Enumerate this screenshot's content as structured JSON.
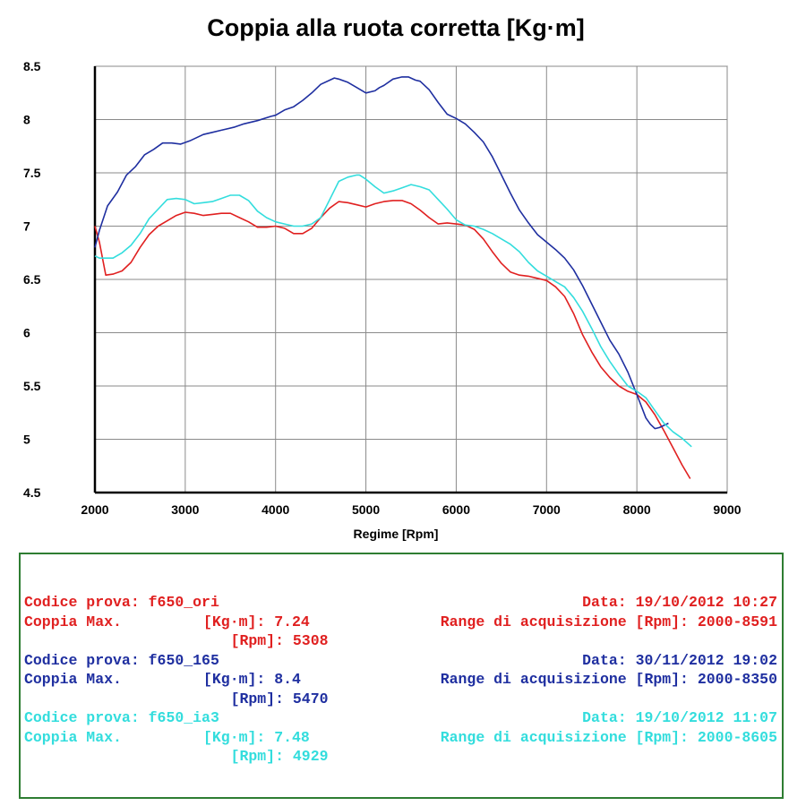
{
  "chart_data": {
    "type": "line",
    "title": "Coppia alla ruota corretta [Kg·m]",
    "xlabel": "Regime [Rpm]",
    "ylabel": "",
    "xlim": [
      2000,
      9000
    ],
    "ylim": [
      4.5,
      8.5
    ],
    "xticks": [
      "2000",
      "3000",
      "4000",
      "5000",
      "6000",
      "7000",
      "8000",
      "9000"
    ],
    "yticks": [
      "4.5",
      "5",
      "5.5",
      "6",
      "6.5",
      "7",
      "7.5",
      "8",
      "8.5"
    ],
    "grid": true,
    "series": [
      {
        "name": "f650_ori",
        "color": "#e02020",
        "x": [
          2000,
          2050,
          2120,
          2200,
          2300,
          2400,
          2500,
          2600,
          2700,
          2800,
          2900,
          3000,
          3100,
          3200,
          3300,
          3400,
          3500,
          3600,
          3700,
          3800,
          3900,
          4000,
          4100,
          4200,
          4300,
          4400,
          4500,
          4600,
          4700,
          4800,
          4900,
          5000,
          5100,
          5200,
          5300,
          5400,
          5500,
          5600,
          5700,
          5800,
          5900,
          6000,
          6100,
          6200,
          6300,
          6400,
          6500,
          6600,
          6700,
          6800,
          6900,
          7000,
          7100,
          7200,
          7300,
          7400,
          7500,
          7600,
          7700,
          7800,
          7900,
          8000,
          8100,
          8200,
          8300,
          8400,
          8500,
          8591
        ],
        "values": [
          7.0,
          6.85,
          6.54,
          6.55,
          6.58,
          6.66,
          6.8,
          6.92,
          7.0,
          7.05,
          7.1,
          7.13,
          7.12,
          7.1,
          7.11,
          7.12,
          7.12,
          7.08,
          7.04,
          6.99,
          6.99,
          7.0,
          6.98,
          6.93,
          6.93,
          6.98,
          7.08,
          7.17,
          7.23,
          7.22,
          7.2,
          7.18,
          7.21,
          7.23,
          7.24,
          7.24,
          7.21,
          7.15,
          7.08,
          7.02,
          7.03,
          7.02,
          7.01,
          6.97,
          6.88,
          6.76,
          6.65,
          6.57,
          6.54,
          6.53,
          6.51,
          6.49,
          6.43,
          6.34,
          6.18,
          5.98,
          5.82,
          5.68,
          5.58,
          5.5,
          5.45,
          5.42,
          5.35,
          5.23,
          5.08,
          4.92,
          4.76,
          4.63
        ]
      },
      {
        "name": "f650_165",
        "color": "#1f2fa0",
        "x": [
          2000,
          2050,
          2140,
          2250,
          2350,
          2450,
          2550,
          2650,
          2750,
          2850,
          2950,
          3050,
          3200,
          3300,
          3400,
          3550,
          3650,
          3800,
          3950,
          4000,
          4100,
          4200,
          4300,
          4400,
          4500,
          4600,
          4650,
          4700,
          4800,
          4900,
          5000,
          5100,
          5150,
          5200,
          5300,
          5400,
          5470,
          5550,
          5600,
          5700,
          5800,
          5900,
          6000,
          6100,
          6200,
          6300,
          6400,
          6500,
          6600,
          6700,
          6800,
          6900,
          7000,
          7100,
          7200,
          7300,
          7400,
          7500,
          7600,
          7700,
          7800,
          7900,
          8000,
          8100,
          8150,
          8200,
          8250,
          8300,
          8350
        ],
        "values": [
          6.8,
          6.96,
          7.19,
          7.32,
          7.48,
          7.56,
          7.67,
          7.72,
          7.78,
          7.78,
          7.77,
          7.8,
          7.86,
          7.88,
          7.9,
          7.93,
          7.96,
          7.99,
          8.03,
          8.04,
          8.09,
          8.12,
          8.18,
          8.25,
          8.33,
          8.37,
          8.39,
          8.38,
          8.35,
          8.3,
          8.25,
          8.27,
          8.3,
          8.32,
          8.38,
          8.4,
          8.4,
          8.37,
          8.36,
          8.28,
          8.16,
          8.05,
          8.01,
          7.96,
          7.88,
          7.79,
          7.65,
          7.48,
          7.31,
          7.15,
          7.03,
          6.92,
          6.85,
          6.78,
          6.7,
          6.59,
          6.44,
          6.27,
          6.1,
          5.93,
          5.8,
          5.63,
          5.42,
          5.2,
          5.14,
          5.1,
          5.11,
          5.13,
          5.15
        ]
      },
      {
        "name": "f650_ia3",
        "color": "#33dddd",
        "x": [
          2000,
          2050,
          2100,
          2200,
          2300,
          2400,
          2500,
          2600,
          2700,
          2800,
          2900,
          3000,
          3100,
          3200,
          3300,
          3400,
          3500,
          3600,
          3700,
          3800,
          3900,
          4000,
          4100,
          4200,
          4300,
          4400,
          4500,
          4600,
          4700,
          4800,
          4900,
          4929,
          5000,
          5100,
          5200,
          5300,
          5400,
          5500,
          5600,
          5700,
          5800,
          5900,
          6000,
          6100,
          6200,
          6300,
          6400,
          6500,
          6600,
          6700,
          6800,
          6900,
          7000,
          7100,
          7200,
          7300,
          7400,
          7500,
          7600,
          7700,
          7800,
          7900,
          8000,
          8100,
          8200,
          8300,
          8400,
          8500,
          8605
        ],
        "values": [
          6.72,
          6.7,
          6.7,
          6.7,
          6.75,
          6.82,
          6.93,
          7.07,
          7.16,
          7.25,
          7.26,
          7.25,
          7.21,
          7.22,
          7.23,
          7.26,
          7.29,
          7.29,
          7.24,
          7.14,
          7.08,
          7.04,
          7.02,
          7.0,
          7.0,
          7.02,
          7.08,
          7.25,
          7.42,
          7.46,
          7.48,
          7.48,
          7.44,
          7.37,
          7.31,
          7.33,
          7.36,
          7.39,
          7.37,
          7.34,
          7.25,
          7.16,
          7.06,
          7.01,
          7.0,
          6.97,
          6.93,
          6.88,
          6.83,
          6.76,
          6.66,
          6.58,
          6.53,
          6.48,
          6.43,
          6.33,
          6.2,
          6.04,
          5.87,
          5.73,
          5.61,
          5.5,
          5.45,
          5.39,
          5.27,
          5.15,
          5.07,
          5.01,
          4.93
        ]
      }
    ]
  },
  "info": {
    "records": [
      {
        "color": "#e02020",
        "code_label": "Codice prova:",
        "code_value": "f650_ori",
        "date_label": "Data:",
        "date_value": "19/10/2012 10:27",
        "max_label": "Coppia Max.",
        "torque_unit": "[Kg·m]:",
        "torque_value": "7.24",
        "range_label": "Range di acquisizione [Rpm]:",
        "range_value": "2000-8591",
        "rpm_unit": "[Rpm]:",
        "rpm_value": "5308"
      },
      {
        "color": "#1f2fa0",
        "code_label": "Codice prova:",
        "code_value": "f650_165",
        "date_label": "Data:",
        "date_value": "30/11/2012 19:02",
        "max_label": "Coppia Max.",
        "torque_unit": "[Kg·m]:",
        "torque_value": "8.4",
        "range_label": "Range di acquisizione [Rpm]:",
        "range_value": "2000-8350",
        "rpm_unit": "[Rpm]:",
        "rpm_value": "5470"
      },
      {
        "color": "#33dddd",
        "code_label": "Codice prova:",
        "code_value": "f650_ia3",
        "date_label": "Data:",
        "date_value": "19/10/2012 11:07",
        "max_label": "Coppia Max.",
        "torque_unit": "[Kg·m]:",
        "torque_value": "7.48",
        "range_label": "Range di acquisizione [Rpm]:",
        "range_value": "2000-8605",
        "rpm_unit": "[Rpm]:",
        "rpm_value": "4929"
      }
    ]
  }
}
